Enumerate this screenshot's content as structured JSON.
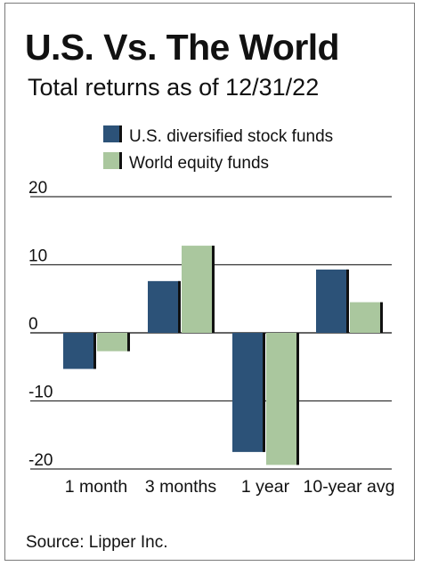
{
  "header": {
    "title": "U.S. Vs. The World",
    "subtitle": "Total returns as of 12/31/22"
  },
  "footer": {
    "source": "Source: Lipper Inc."
  },
  "colors": {
    "us_funds": "#2c5278",
    "world_funds": "#aac79e",
    "gridline": "#333333",
    "bar_shadow": "#111111"
  },
  "chart_data": {
    "type": "bar",
    "categories": [
      "1 month",
      "3 months",
      "1 year",
      "10-year avg"
    ],
    "series": [
      {
        "name": "U.S. diversified stock funds",
        "values": [
          -5.3,
          7.6,
          -17.5,
          9.3
        ]
      },
      {
        "name": "World equity funds",
        "values": [
          -2.7,
          12.8,
          -19.4,
          4.5
        ]
      }
    ],
    "yticks": [
      20,
      10,
      0,
      -10,
      -20
    ],
    "ytick_labels": [
      "20",
      "10",
      "0",
      "-10",
      "-20"
    ],
    "ylim": [
      -20,
      20
    ],
    "grid": "horizontal",
    "legend_position": "top-left",
    "xlabel": "",
    "ylabel": ""
  }
}
